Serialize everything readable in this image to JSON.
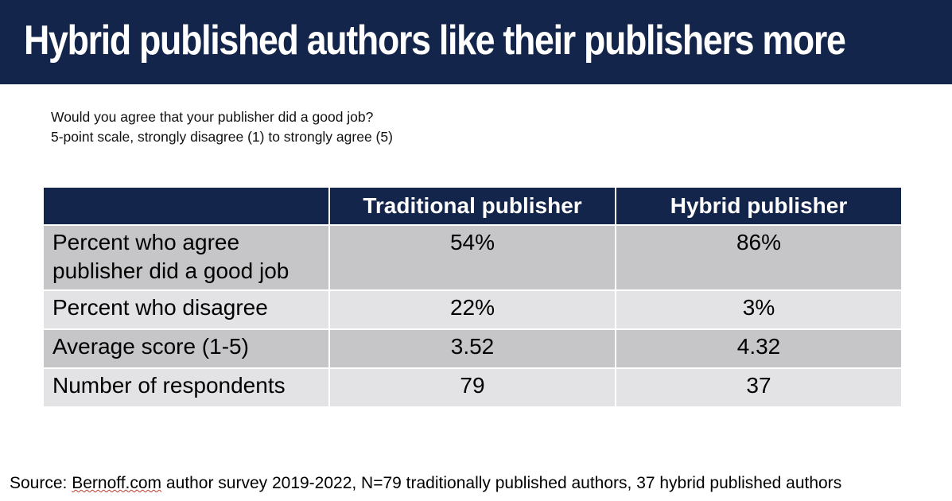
{
  "header": {
    "title": "Hybrid published authors like their publishers more"
  },
  "subtitle": {
    "line1": "Would you agree that your publisher did a good job?",
    "line2": "5-point scale, strongly disagree (1) to strongly agree (5)"
  },
  "chart_data": {
    "type": "table",
    "title": "Hybrid published authors like their publishers more",
    "columns": [
      "",
      "Traditional publisher",
      "Hybrid publisher"
    ],
    "rows": [
      {
        "label": "Percent who agree publisher did a good job",
        "values": [
          "54%",
          "86%"
        ]
      },
      {
        "label": "Percent who disagree",
        "values": [
          "22%",
          "3%"
        ]
      },
      {
        "label": "Average score (1-5)",
        "values": [
          "3.52",
          "4.32"
        ]
      },
      {
        "label": "Number of respondents",
        "values": [
          "79",
          "37"
        ]
      }
    ]
  },
  "source": {
    "prefix": "Source: ",
    "link": "Bernoff.com",
    "rest": " author survey 2019-2022, N=79 traditionally published authors, 37 hybrid published authors"
  },
  "colors": {
    "header_bg": "#13254a",
    "row_dark": "#c6c6c8",
    "row_light": "#e3e3e5"
  }
}
